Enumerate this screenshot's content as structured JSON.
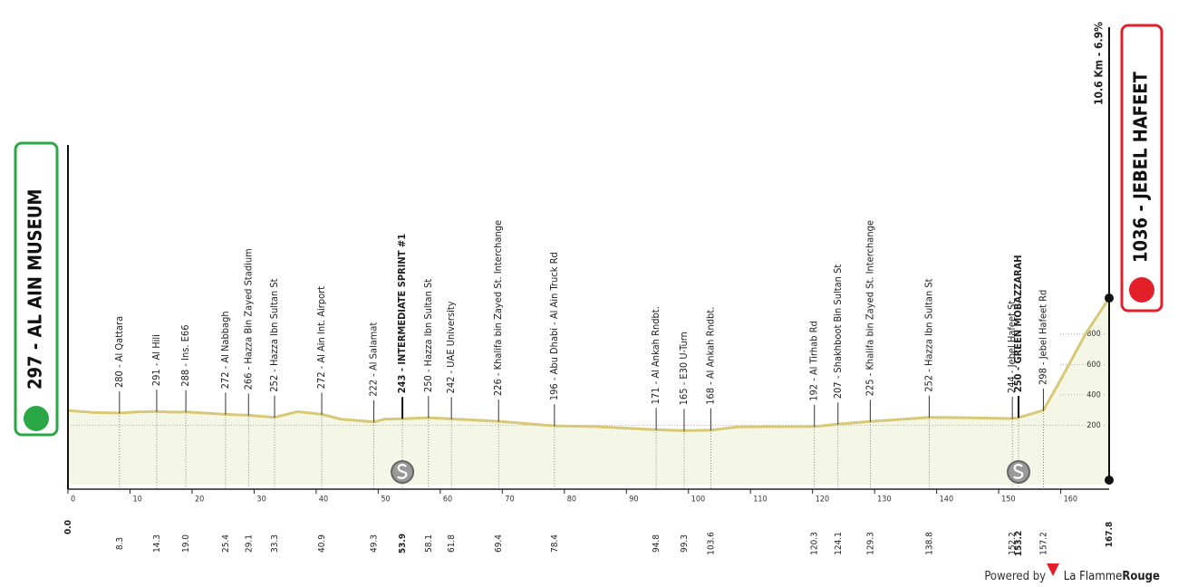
{
  "chart_data": {
    "type": "area",
    "x": [
      0,
      4,
      8.3,
      11,
      14.3,
      17,
      19,
      22,
      25.4,
      29.1,
      33.3,
      37,
      40.9,
      44,
      49.3,
      51,
      53.9,
      58.1,
      61.8,
      69.4,
      78.4,
      85,
      94.8,
      99.3,
      103.6,
      108,
      120.3,
      124.1,
      129.3,
      138.8,
      145,
      152.2,
      153.2,
      157.2,
      160,
      164,
      167.8
    ],
    "values": [
      297,
      285,
      280,
      288,
      291,
      286,
      288,
      280,
      272,
      266,
      252,
      290,
      272,
      240,
      222,
      240,
      243,
      250,
      242,
      226,
      196,
      192,
      171,
      165,
      168,
      190,
      192,
      207,
      225,
      252,
      250,
      244,
      250,
      298,
      500,
      800,
      1036
    ],
    "color": "#d8c878",
    "fill": "#f5f7e6",
    "xlim": [
      0,
      167.8
    ],
    "ylim": [
      -190,
      1060
    ],
    "xticks": [
      0,
      10,
      20,
      30,
      40,
      50,
      60,
      70,
      80,
      90,
      100,
      110,
      120,
      130,
      140,
      150,
      160
    ],
    "yticks": [
      200,
      400,
      600,
      800
    ],
    "start": {
      "km": {
        "value": 0,
        "label": "0.0"
      },
      "label": "297 - AL AIN MUSEUM",
      "color": "#2aa846"
    },
    "finish": {
      "km": 167.8,
      "label": "1036 - JEBEL HAFEET",
      "climb": "10.6 Km - 6.9%",
      "color": "#e3202a"
    },
    "waypoints": [
      {
        "km": 8.3,
        "label": "280 - Al Qattara"
      },
      {
        "km": 14.3,
        "label": "291 - Al Hili"
      },
      {
        "km": {
          "value": 19,
          "label": "19.0"
        },
        "label": "288 - Ins. E66"
      },
      {
        "km": 25.4,
        "label": "272 - Al Nabbagh"
      },
      {
        "km": 29.1,
        "label": "266 - Hazza Bin Zayed Stadium"
      },
      {
        "km": 33.3,
        "label": "252 - Hazza Ibn Sultan St"
      },
      {
        "km": 40.9,
        "label": "272 - Al Ain Int. Airport"
      },
      {
        "km": 49.3,
        "label": "222 - Al Salamat"
      },
      {
        "km": 53.9,
        "label": "243 - INTERMEDIATE SPRINT #1",
        "bold": true,
        "sprint": true
      },
      {
        "km": 58.1,
        "label": "250 - Hazza Ibn Sultan St"
      },
      {
        "km": 61.8,
        "label": "242 - UAE University"
      },
      {
        "km": 69.4,
        "label": "226 - Khalifa bin Zayed St. Interchange"
      },
      {
        "km": 78.4,
        "label": "196 - Abu Dhabi - Al Ain Truck Rd"
      },
      {
        "km": 94.8,
        "label": "171 - Al Ankah Rndbt."
      },
      {
        "km": 99.3,
        "label": "165 - E30 U-Turn"
      },
      {
        "km": 103.6,
        "label": "168 - Al Ankah Rndbt."
      },
      {
        "km": 120.3,
        "label": "192 - Al Tirhab Rd"
      },
      {
        "km": 124.1,
        "label": "207 - Shakhboot Bin Sultan St"
      },
      {
        "km": 129.3,
        "label": "225 - Khalifa bin Zayed St. Interchange"
      },
      {
        "km": 138.8,
        "label": "252 - Hazza Ibn Sultan St"
      },
      {
        "km": 152.2,
        "label": "244 - Jebel Hafeet St"
      },
      {
        "km": 153.2,
        "label": "250 - GREEN MOBAZZARAH",
        "bold": true,
        "sprint": true
      },
      {
        "km": 157.2,
        "label": "298 - Jebel Hafeet Rd"
      }
    ],
    "footer": {
      "powered": "Powered by",
      "brand": "La Flamme",
      "brand_bold": "Rouge"
    }
  }
}
